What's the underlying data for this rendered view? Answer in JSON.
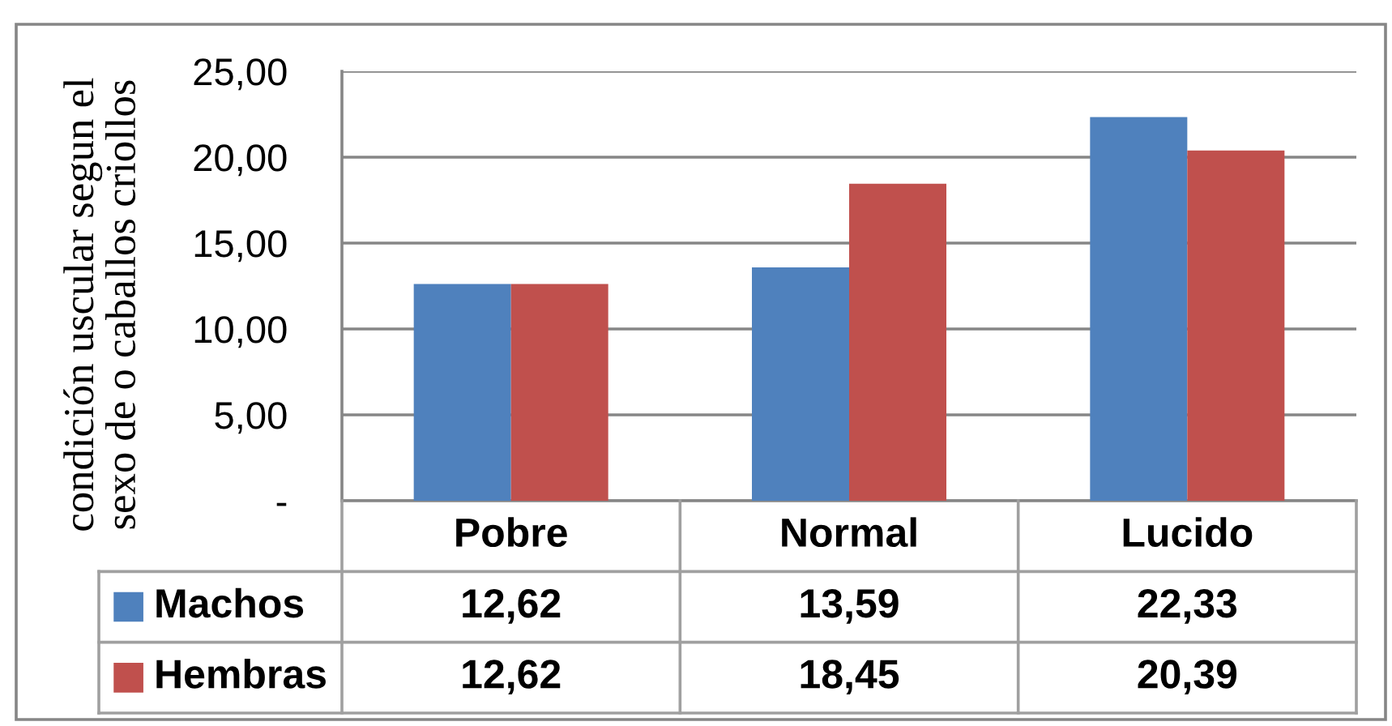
{
  "chart_data": {
    "type": "bar",
    "ylabel": "condición uscular segun el\nsexo de o caballos criollos",
    "categories": [
      "Pobre",
      "Normal",
      "Lucido"
    ],
    "series": [
      {
        "name": "Machos",
        "color": "#4f81bd",
        "values": [
          12.62,
          13.59,
          22.33
        ],
        "value_labels": [
          "12,62",
          "13,59",
          "22,33"
        ]
      },
      {
        "name": "Hembras",
        "color": "#c0504d",
        "values": [
          12.62,
          18.45,
          20.39
        ],
        "value_labels": [
          "12,62",
          "18,45",
          "20,39"
        ]
      }
    ],
    "ylim": [
      0,
      25
    ],
    "yticks": [
      {
        "value": 0,
        "label": "-"
      },
      {
        "value": 5,
        "label": "5,00"
      },
      {
        "value": 10,
        "label": "10,00"
      },
      {
        "value": 15,
        "label": "15,00"
      },
      {
        "value": 20,
        "label": "20,00"
      },
      {
        "value": 25,
        "label": "25,00"
      }
    ],
    "grid": "y",
    "legend": "bottom"
  }
}
